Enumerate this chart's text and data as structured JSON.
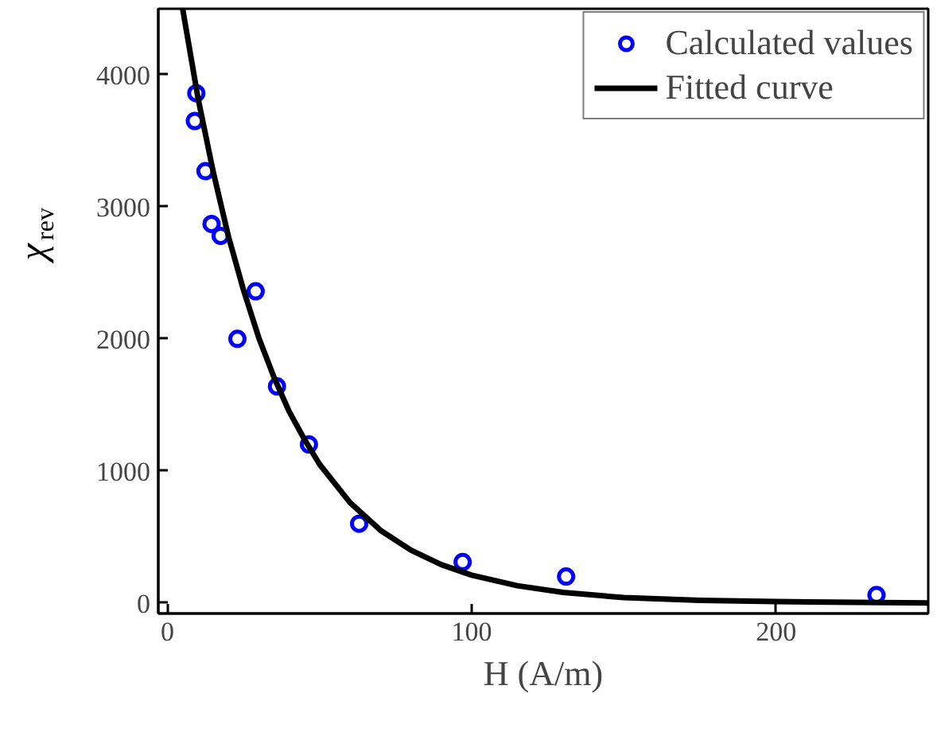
{
  "chart_data": {
    "type": "scatter",
    "xlabel": "H (A/m)",
    "ylabel": "χ$_{rev}$",
    "xlim": [
      -3,
      250
    ],
    "ylim": [
      -80,
      4500
    ],
    "xticks": [
      0,
      100,
      200
    ],
    "yticks": [
      0,
      1000,
      2000,
      3000,
      4000
    ],
    "grid": false,
    "legend": "top right",
    "series": [
      {
        "name": "Calculated values",
        "color": "#0000ff",
        "marker": "circle",
        "x": [
          9.5,
          9,
          12.5,
          14.5,
          17.5,
          29,
          23,
          36,
          46.5,
          63,
          97,
          131,
          233
        ],
        "values": [
          3860,
          3650,
          3270,
          2870,
          2780,
          2360,
          2000,
          1640,
          1200,
          600,
          310,
          200,
          60
        ]
      },
      {
        "name": "Fitted curve",
        "type": "line",
        "color": "#000000",
        "line_style": "solid",
        "x": [
          5,
          10,
          15,
          20,
          25,
          30,
          35,
          40,
          45,
          50,
          60,
          70,
          80,
          90,
          100,
          115,
          130,
          150,
          175,
          200,
          250
        ],
        "values": [
          4500,
          3830,
          3270,
          2780,
          2370,
          2010,
          1710,
          1450,
          1240,
          1050,
          760,
          550,
          400,
          290,
          210,
          130,
          80,
          40,
          20,
          10,
          0
        ]
      }
    ]
  }
}
